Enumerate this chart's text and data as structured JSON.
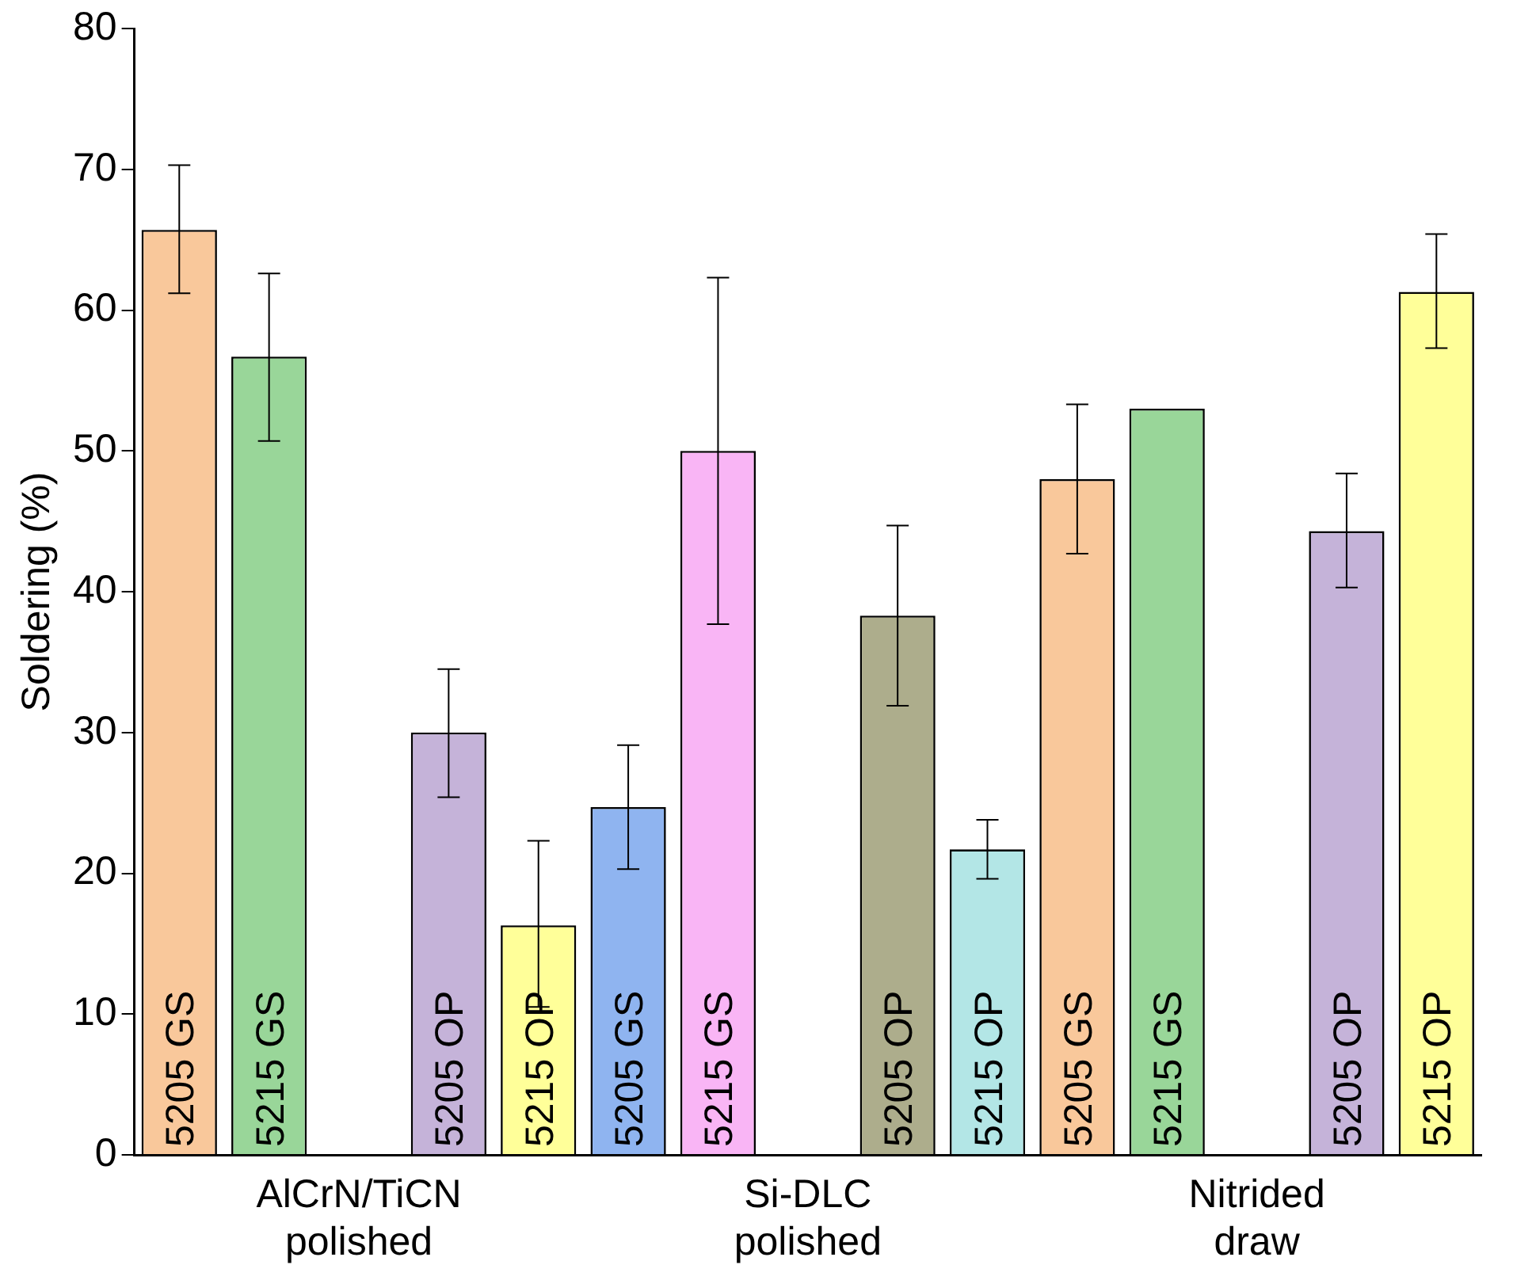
{
  "chart_data": {
    "type": "bar",
    "ylabel": "Soldering (%)",
    "categories": [
      "AlCrN/TiCN polished",
      "Si-DLC polished",
      "Nitrided draw"
    ],
    "series": [
      {
        "name": "5205 GS",
        "colors": [
          "#f9c89b",
          "#8fb4f0",
          "#f9c89b"
        ],
        "values": [
          65.7,
          24.7,
          48.0
        ],
        "errors": [
          [
            61.2,
            70.3
          ],
          [
            20.3,
            29.1
          ],
          [
            42.7,
            53.3
          ]
        ]
      },
      {
        "name": "5215 GS",
        "colors": [
          "#99d699",
          "#f9b5f5",
          "#99d699"
        ],
        "values": [
          56.7,
          50.0,
          53.0
        ],
        "errors": [
          [
            50.7,
            62.6
          ],
          [
            37.7,
            62.3
          ],
          null
        ]
      },
      {
        "name": "5205 OP",
        "colors": [
          "#c5b3d9",
          "#adad8c",
          "#c5b3d9"
        ],
        "values": [
          30.0,
          38.3,
          44.3
        ],
        "errors": [
          [
            25.4,
            34.5
          ],
          [
            31.9,
            44.7
          ],
          [
            40.3,
            48.4
          ]
        ]
      },
      {
        "name": "5215 OP",
        "colors": [
          "#ffff99",
          "#b3e6e6",
          "#ffff99"
        ],
        "values": [
          16.3,
          21.7,
          61.3
        ],
        "errors": [
          [
            10.5,
            22.3
          ],
          [
            19.6,
            23.8
          ],
          [
            57.3,
            65.4
          ]
        ]
      }
    ],
    "ylim": [
      0,
      80
    ],
    "yticks": [
      0,
      10,
      20,
      30,
      40,
      50,
      60,
      70,
      80
    ],
    "grid": false,
    "legend": false
  }
}
